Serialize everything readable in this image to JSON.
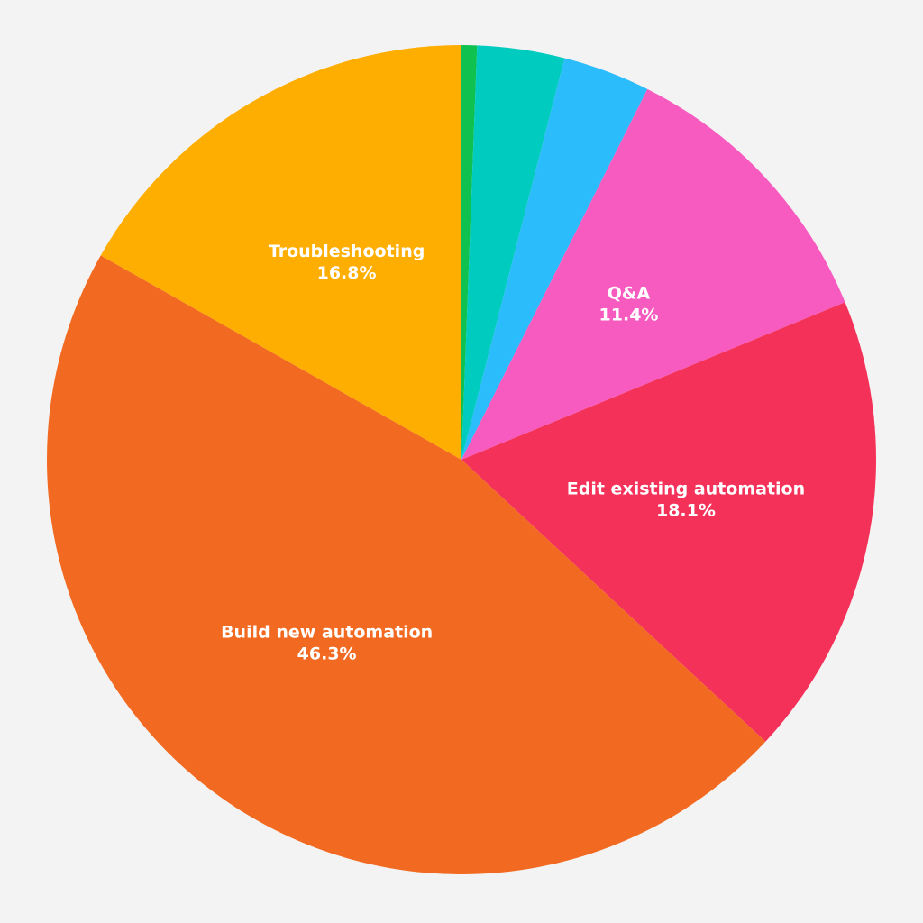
{
  "chart_data": {
    "type": "pie",
    "categories": [
      null,
      null,
      null,
      "Q&A",
      "Edit existing automation",
      "Build new automation",
      "Troubleshooting"
    ],
    "values": [
      0.6,
      3.4,
      3.4,
      11.4,
      18.1,
      46.3,
      16.8
    ],
    "value_labels": [
      null,
      null,
      null,
      "11.4%",
      "18.1%",
      "46.3%",
      "16.8%"
    ],
    "colors": [
      "#0fc14f",
      "#00cbbf",
      "#2bbcfb",
      "#f75bbf",
      "#f43259",
      "#f26a21",
      "#feae00"
    ],
    "start_angle": 90,
    "direction": "clockwise"
  }
}
